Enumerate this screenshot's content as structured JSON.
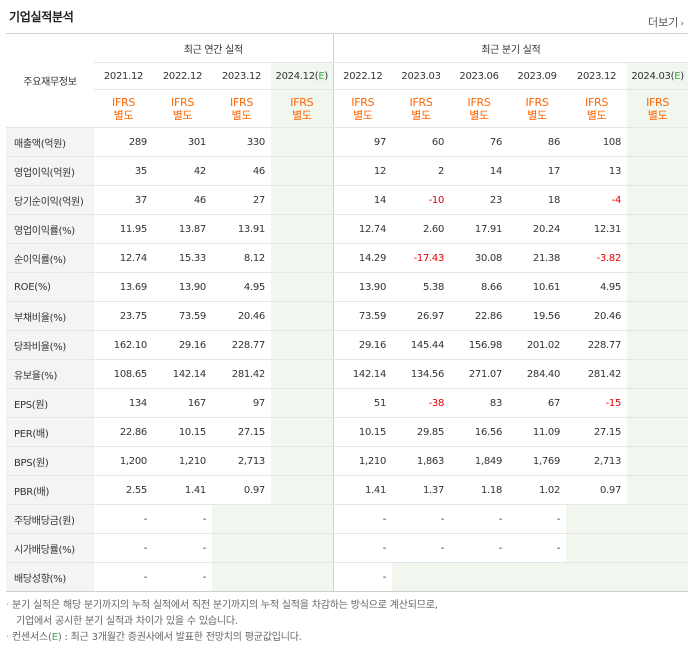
{
  "header": {
    "title": "기업실적분석",
    "more_label": "더보기"
  },
  "table": {
    "label_header": "주요재무정보",
    "group_annual": "최근 연간 실적",
    "group_quarter": "최근 분기 실적",
    "annual_periods": [
      "2021.12",
      "2022.12",
      "2023.12"
    ],
    "annual_est_period": "2024.12",
    "quarter_periods": [
      "2022.12",
      "2023.03",
      "2023.06",
      "2023.09",
      "2023.12"
    ],
    "quarter_est_period": "2024.03",
    "est_suffix": "E",
    "basis_line1": "IFRS",
    "basis_line2": "별도",
    "rows": [
      {
        "label": "매출액(억원)",
        "a": [
          "289",
          "301",
          "330",
          ""
        ],
        "q": [
          "97",
          "60",
          "76",
          "86",
          "108",
          ""
        ]
      },
      {
        "label": "영업이익(억원)",
        "a": [
          "35",
          "42",
          "46",
          ""
        ],
        "q": [
          "12",
          "2",
          "14",
          "17",
          "13",
          ""
        ]
      },
      {
        "label": "당기순이익(억원)",
        "a": [
          "37",
          "46",
          "27",
          ""
        ],
        "q": [
          "14",
          "-10",
          "23",
          "18",
          "-4",
          ""
        ]
      },
      {
        "label": "영업이익률(%)",
        "a": [
          "11.95",
          "13.87",
          "13.91",
          ""
        ],
        "q": [
          "12.74",
          "2.60",
          "17.91",
          "20.24",
          "12.31",
          ""
        ]
      },
      {
        "label": "순이익률(%)",
        "a": [
          "12.74",
          "15.33",
          "8.12",
          ""
        ],
        "q": [
          "14.29",
          "-17.43",
          "30.08",
          "21.38",
          "-3.82",
          ""
        ]
      },
      {
        "label": "ROE(%)",
        "a": [
          "13.69",
          "13.90",
          "4.95",
          ""
        ],
        "q": [
          "13.90",
          "5.38",
          "8.66",
          "10.61",
          "4.95",
          ""
        ]
      },
      {
        "label": "부채비율(%)",
        "a": [
          "23.75",
          "73.59",
          "20.46",
          ""
        ],
        "q": [
          "73.59",
          "26.97",
          "22.86",
          "19.56",
          "20.46",
          ""
        ]
      },
      {
        "label": "당좌비율(%)",
        "a": [
          "162.10",
          "29.16",
          "228.77",
          ""
        ],
        "q": [
          "29.16",
          "145.44",
          "156.98",
          "201.02",
          "228.77",
          ""
        ]
      },
      {
        "label": "유보율(%)",
        "a": [
          "108.65",
          "142.14",
          "281.42",
          ""
        ],
        "q": [
          "142.14",
          "134.56",
          "271.07",
          "284.40",
          "281.42",
          ""
        ]
      },
      {
        "label": "EPS(원)",
        "a": [
          "134",
          "167",
          "97",
          ""
        ],
        "q": [
          "51",
          "-38",
          "83",
          "67",
          "-15",
          ""
        ]
      },
      {
        "label": "PER(배)",
        "a": [
          "22.86",
          "10.15",
          "27.15",
          ""
        ],
        "q": [
          "10.15",
          "29.85",
          "16.56",
          "11.09",
          "27.15",
          ""
        ]
      },
      {
        "label": "BPS(원)",
        "a": [
          "1,200",
          "1,210",
          "2,713",
          ""
        ],
        "q": [
          "1,210",
          "1,863",
          "1,849",
          "1,769",
          "2,713",
          ""
        ]
      },
      {
        "label": "PBR(배)",
        "a": [
          "2.55",
          "1.41",
          "0.97",
          ""
        ],
        "q": [
          "1.41",
          "1.37",
          "1.18",
          "1.02",
          "0.97",
          ""
        ]
      },
      {
        "label": "주당배당금(원)",
        "a": [
          "-",
          "-",
          "",
          ""
        ],
        "q": [
          "-",
          "-",
          "-",
          "-",
          "",
          ""
        ]
      },
      {
        "label": "시가배당률(%)",
        "a": [
          "-",
          "-",
          "",
          ""
        ],
        "q": [
          "-",
          "-",
          "-",
          "-",
          "",
          ""
        ]
      },
      {
        "label": "배당성향(%)",
        "a": [
          "-",
          "-",
          "",
          ""
        ],
        "q": [
          "-",
          "",
          "",
          "",
          "",
          ""
        ]
      }
    ]
  },
  "notes": {
    "line1": "분기 실적은 해당 분기까지의 누적 실적에서 직전 분기까지의 누적 실적을 차감하는 방식으로 계산되므로,",
    "line2": "기업에서 공시한 분기 실적과 차이가 있을 수 있습니다.",
    "line3_pre": "컨센서스(",
    "line3_e": "E",
    "line3_post": ") : 최근 3개월간 증권사에서 발표한 전망치의 평균값입니다."
  }
}
